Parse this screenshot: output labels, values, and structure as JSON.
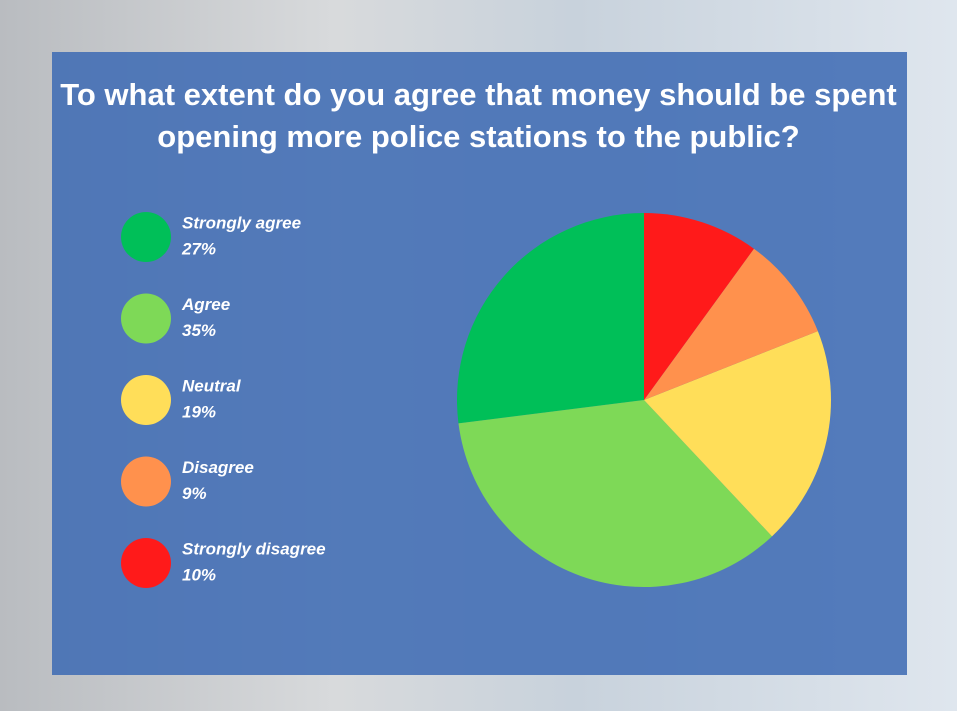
{
  "chart_data": {
    "type": "pie",
    "title": "To what extent do you agree that money should be spent opening more police stations to the public?",
    "categories": [
      "Strongly agree",
      "Agree",
      "Neutral",
      "Disagree",
      "Strongly disagree"
    ],
    "values": [
      27,
      35,
      19,
      9,
      10
    ],
    "value_labels": [
      "27%",
      "35%",
      "19%",
      "9%",
      "10%"
    ],
    "colors": [
      "#00bf58",
      "#7ed957",
      "#ffde59",
      "#ff914d",
      "#ff1a1a"
    ]
  }
}
